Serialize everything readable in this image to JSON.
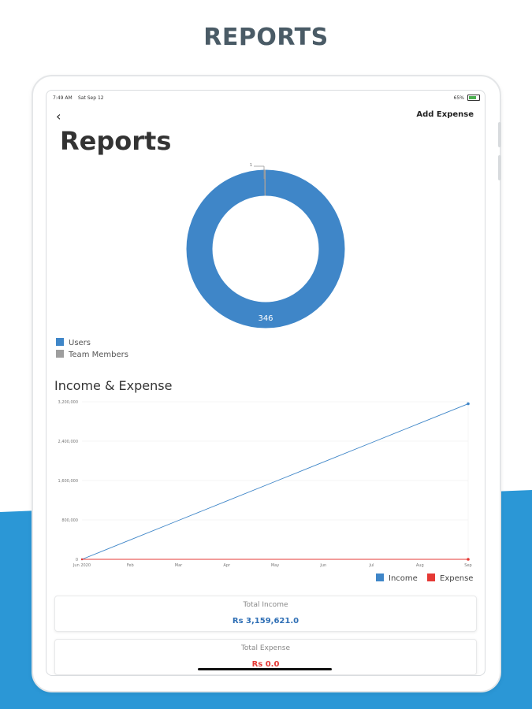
{
  "banner": {
    "title": "REPORTS"
  },
  "colors": {
    "brand_blue": "#2b97d6",
    "users": "#3f86c8",
    "team_members": "#9e9e9e",
    "income": "#3f86c8",
    "expense": "#e53935"
  },
  "status_bar": {
    "time": "7:49 AM",
    "date": "Sat Sep 12",
    "battery": "65%"
  },
  "nav": {
    "back_icon": "chevron-left-icon",
    "add_expense_label": "Add Expense"
  },
  "page": {
    "title": "Reports"
  },
  "donut": {
    "center_value_label": "346",
    "top_value_label": "1",
    "values": [
      {
        "name": "Users",
        "value": 346
      },
      {
        "name": "Team Members",
        "value": 1
      }
    ]
  },
  "legend": {
    "users": "Users",
    "team_members": "Team Members"
  },
  "chart_data": {
    "type": "line",
    "title": "Income & Expense",
    "x": [
      "Jun 2020",
      "Feb",
      "Mar",
      "Apr",
      "May",
      "Jun",
      "Jul",
      "Aug",
      "Sep"
    ],
    "y_ticks": [
      "0",
      "800,000",
      "1,600,000",
      "2,400,000",
      "3,200,000"
    ],
    "ylim": [
      0,
      3200000
    ],
    "series": [
      {
        "name": "Income",
        "values": [
          0,
          394952,
          789905,
          1184858,
          1579810,
          1974763,
          2369716,
          2764668,
          3159621
        ]
      },
      {
        "name": "Expense",
        "values": [
          0,
          0,
          0,
          0,
          0,
          0,
          0,
          0,
          0
        ]
      }
    ],
    "grid": true,
    "legend": "bottom-right"
  },
  "cards": {
    "income_label": "Total Income",
    "income_value": "Rs 3,159,621.0",
    "expense_label": "Total Expense",
    "expense_value": "Rs 0.0"
  }
}
